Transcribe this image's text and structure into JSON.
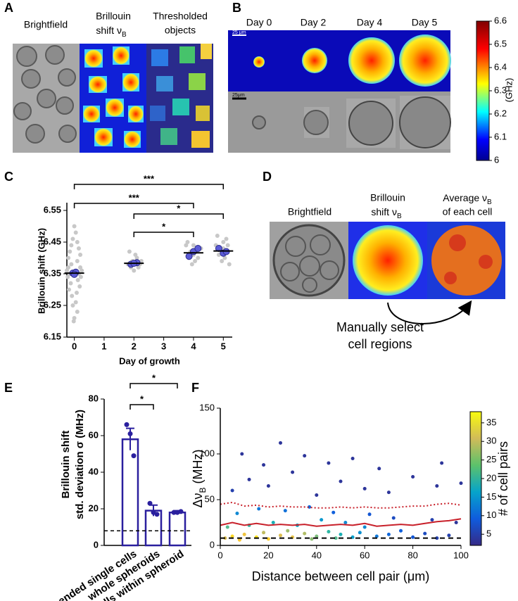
{
  "figure": {
    "panel_a": {
      "label": "A",
      "brightfield": "Brightfield",
      "brillouin_line1": "Brillouin",
      "brillouin_line2": "shift ν",
      "brillouin_sub": "B",
      "thresholded_line1": "Thresholded",
      "thresholded_line2": "objects"
    },
    "panel_b": {
      "label": "B",
      "days": [
        "Day 0",
        "Day 2",
        "Day 4",
        "Day 5"
      ],
      "scale_top": "25 μm",
      "scale_bottom": "25μm",
      "colorbar": {
        "lim": [
          6,
          6.6
        ],
        "ticks": [
          6,
          6.1,
          6.2,
          6.3,
          6.4,
          6.5,
          6.6
        ],
        "label": "(GHz)"
      }
    },
    "panel_c": {
      "label": "C"
    },
    "panel_d": {
      "label": "D",
      "brightfield": "Brightfield",
      "brillouin_line1": "Brillouin",
      "brillouin_line2": "shift ν",
      "brillouin_sub": "B",
      "average_line1": "Average ν",
      "average_sub": "B",
      "average_line2": "of each cell",
      "note_line1": "Manually select",
      "note_line2": "cell regions"
    },
    "panel_e": {
      "label": "E"
    },
    "panel_f": {
      "label": "F"
    }
  },
  "chart_data": [
    {
      "type": "scatter",
      "xlabel": "Day of growth",
      "ylabel": "Brillouin shift  (GHz)",
      "xlim": [
        -0.25,
        5.3
      ],
      "xticks": [
        0,
        1,
        2,
        3,
        4,
        5
      ],
      "ylim": [
        6.15,
        6.55
      ],
      "yticks": [
        6.15,
        6.25,
        6.35,
        6.45,
        6.55
      ],
      "series": [
        {
          "color": "#c8c8c8",
          "x": [
            0,
            0.05,
            -0.05,
            0.1,
            -0.1,
            0.15,
            -0.15,
            0.2,
            -0.2,
            0.1,
            -0.1,
            0.2,
            -0.2,
            0.25,
            -0.25,
            0.15,
            -0.15,
            0.22,
            -0.22,
            0.12,
            -0.12,
            0.18,
            -0.18,
            0.08,
            -0.08,
            0.05,
            -0.05,
            0.1,
            0,
            -0.02,
            1.85,
            2.1,
            1.95,
            2.2,
            1.8,
            2.15,
            1.9,
            2.0,
            2.25,
            2.05,
            3.8,
            4.0,
            4.2,
            3.9,
            4.1,
            3.85,
            4.15,
            4.05,
            3.95,
            4.25,
            3.75,
            4.0,
            4.8,
            5.0,
            5.15,
            4.9,
            5.1,
            4.85,
            5.05,
            4.95,
            5.2,
            4.75,
            5.0,
            5.1
          ],
          "values": [
            6.5,
            6.48,
            6.46,
            6.45,
            6.44,
            6.43,
            6.42,
            6.41,
            6.4,
            6.39,
            6.38,
            6.37,
            6.37,
            6.36,
            6.36,
            6.35,
            6.35,
            6.34,
            6.34,
            6.33,
            6.32,
            6.31,
            6.3,
            6.29,
            6.28,
            6.26,
            6.25,
            6.23,
            6.21,
            6.2,
            6.42,
            6.4,
            6.39,
            6.38,
            6.38,
            6.37,
            6.37,
            6.36,
            6.39,
            6.41,
            6.45,
            6.44,
            6.43,
            6.42,
            6.42,
            6.41,
            6.4,
            6.39,
            6.38,
            6.43,
            6.44,
            6.41,
            6.47,
            6.45,
            6.44,
            6.43,
            6.42,
            6.41,
            6.4,
            6.39,
            6.38,
            6.44,
            6.43,
            6.46
          ]
        },
        {
          "color": "#5b5bd6",
          "x": [
            -0.05,
            0.05,
            0,
            1.9,
            2.1,
            2.0,
            3.85,
            4.0,
            4.15,
            4.85,
            5.0,
            5.1
          ],
          "values": [
            6.352,
            6.355,
            6.348,
            6.38,
            6.385,
            6.383,
            6.405,
            6.42,
            6.43,
            6.43,
            6.415,
            6.42
          ]
        }
      ],
      "mean_lines": {
        "color": "#000000",
        "x": [
          0,
          2,
          4,
          5
        ],
        "values": [
          6.352,
          6.383,
          6.416,
          6.422
        ]
      },
      "brackets": [
        {
          "from": 0,
          "to": 5,
          "text": "***"
        },
        {
          "from": 0,
          "to": 4,
          "text": "***"
        },
        {
          "from": 2,
          "to": 5,
          "text": "*"
        },
        {
          "from": 2,
          "to": 4,
          "text": "*"
        }
      ]
    },
    {
      "type": "bar",
      "ylabel_line1": "Brillouin shift",
      "ylabel_line2": "std. deviation σ (MHz)",
      "categories": [
        "suspended single cells",
        "whole spheroids",
        "cells within spheroid"
      ],
      "values": [
        58,
        19,
        18
      ],
      "errors": [
        6,
        3,
        1
      ],
      "color": "#2a1f9e",
      "points": [
        [
          66,
          61,
          49
        ],
        [
          23,
          18,
          17
        ],
        [
          18,
          18,
          18.5
        ]
      ],
      "reference_line": 8,
      "ylim": [
        0,
        80
      ],
      "yticks": [
        0,
        20,
        40,
        60,
        80
      ],
      "brackets": [
        {
          "from": 0,
          "to": 2,
          "text": "*"
        },
        {
          "from": 0,
          "to": 1,
          "text": "*"
        }
      ]
    },
    {
      "type": "line",
      "xlabel": "Distance between cell pair (μm)",
      "ylabel": "Δν",
      "ylabel_sub": "B",
      "ylabel_unit": " (MHz)",
      "xlim": [
        0,
        100
      ],
      "xticks": [
        0,
        20,
        40,
        60,
        80,
        100
      ],
      "ylim": [
        0,
        150
      ],
      "yticks": [
        0,
        50,
        100,
        150
      ],
      "points": {
        "x": [
          2,
          5,
          8,
          10,
          15,
          18,
          20,
          25,
          28,
          30,
          35,
          38,
          40,
          45,
          48,
          50,
          55,
          58,
          60,
          65,
          70,
          75,
          80,
          85,
          90,
          95,
          3,
          12,
          22,
          32,
          42,
          52,
          7,
          16,
          27,
          37,
          47,
          62,
          72,
          88,
          98,
          5,
          12,
          20,
          30,
          40,
          50,
          60,
          70,
          80,
          90,
          100,
          25,
          9,
          45,
          55,
          66,
          92,
          35,
          18
        ],
        "values": [
          8,
          10,
          6,
          12,
          9,
          14,
          7,
          11,
          16,
          9,
          13,
          7,
          10,
          15,
          8,
          12,
          9,
          14,
          20,
          10,
          12,
          16,
          9,
          13,
          8,
          11,
          20,
          22,
          25,
          22,
          28,
          25,
          35,
          40,
          38,
          42,
          36,
          34,
          30,
          28,
          25,
          60,
          72,
          65,
          80,
          55,
          70,
          62,
          58,
          75,
          65,
          68,
          112,
          100,
          90,
          95,
          84,
          90,
          98,
          88
        ],
        "counts": [
          30,
          35,
          33,
          32,
          36,
          28,
          34,
          30,
          26,
          31,
          27,
          25,
          24,
          20,
          22,
          18,
          15,
          13,
          12,
          10,
          8,
          7,
          6,
          5,
          4,
          4,
          22,
          20,
          18,
          16,
          14,
          12,
          12,
          10,
          9,
          8,
          7,
          6,
          5,
          4,
          3,
          4,
          3,
          3,
          3,
          3,
          3,
          3,
          3,
          3,
          3,
          3,
          3,
          3,
          3,
          3,
          3,
          3,
          3,
          3
        ]
      },
      "x": [
        0,
        5,
        10,
        15,
        20,
        25,
        30,
        35,
        40,
        45,
        50,
        55,
        60,
        65,
        70,
        75,
        80,
        85,
        90,
        95,
        100
      ],
      "series": [
        {
          "color": "#c8202a",
          "style": "solid",
          "values": [
            22,
            25,
            22,
            24,
            22,
            23,
            22,
            23,
            21,
            22,
            23,
            22,
            24,
            21,
            22,
            23,
            22,
            24,
            26,
            27,
            29
          ]
        },
        {
          "color": "#c8202a",
          "style": "dotted",
          "values": [
            45,
            47,
            43,
            44,
            42,
            43,
            42,
            42,
            41,
            41,
            42,
            41,
            42,
            41,
            41,
            42,
            43,
            43,
            45,
            46,
            44
          ]
        }
      ],
      "reference_line": 8,
      "colorbar": {
        "lim": [
          2,
          38
        ],
        "ticks": [
          5,
          10,
          15,
          20,
          25,
          30,
          35
        ],
        "label": "# of cell pairs"
      }
    }
  ]
}
